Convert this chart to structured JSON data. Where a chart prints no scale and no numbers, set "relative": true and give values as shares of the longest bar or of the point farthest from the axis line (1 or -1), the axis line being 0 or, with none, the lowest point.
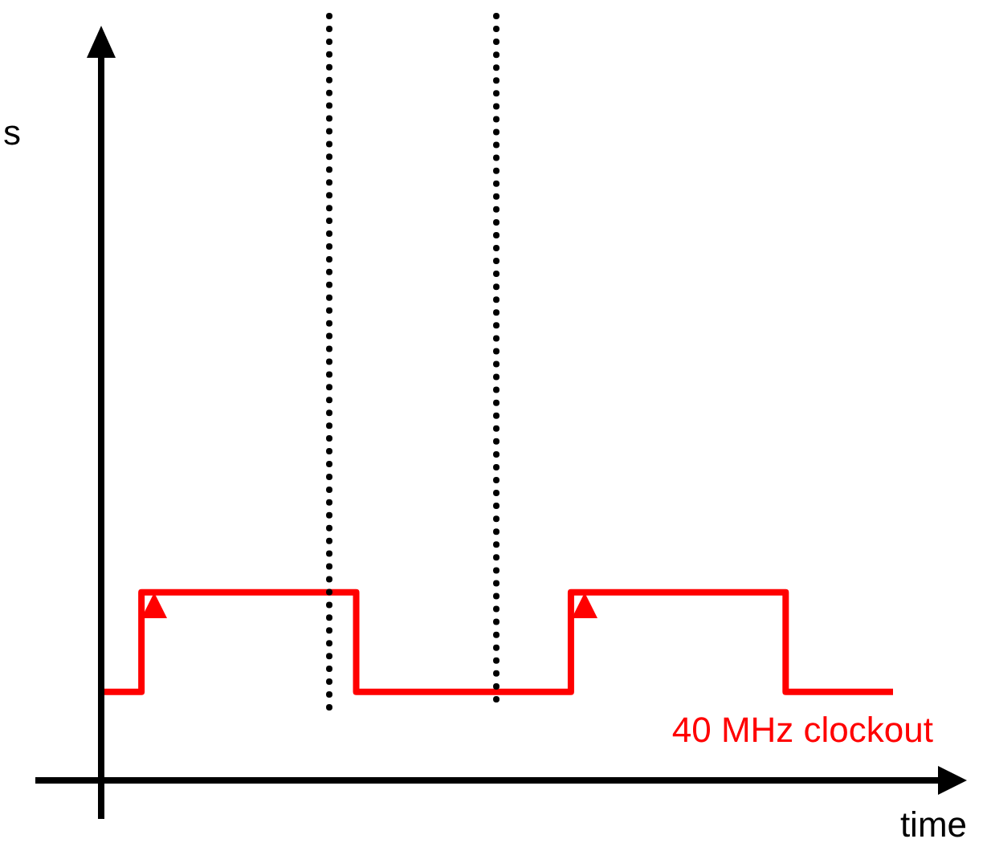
{
  "chart_data": {
    "type": "step",
    "relative": true,
    "xlabel": "time",
    "tick_labels": false,
    "marker": "none",
    "line_style": "solid",
    "categories": [
      null,
      null,
      null,
      null,
      null,
      null,
      null,
      null,
      null,
      null,
      null,
      null,
      null,
      null,
      null,
      null,
      null,
      null,
      null,
      null,
      null,
      null,
      null,
      null,
      null,
      null,
      null,
      null,
      null,
      null,
      null,
      null,
      null,
      null,
      null,
      null,
      null,
      null,
      null,
      null,
      null,
      null,
      null,
      null,
      null,
      null,
      null,
      null,
      null,
      null,
      null,
      null,
      null,
      null,
      null,
      null,
      null,
      null,
      null,
      null
    ],
    "series": [
      {
        "name": "40 MHz clockout",
        "color": "#ff0000",
        "values": [
          0.47,
          0.47,
          0.47,
          0.47,
          1,
          1,
          1,
          1,
          1,
          1,
          1,
          1,
          1,
          1,
          1,
          1,
          1,
          1,
          1,
          1,
          0.47,
          0.47,
          0.47,
          0.47,
          0.47,
          0.47,
          0.47,
          0.47,
          0.47,
          0.47,
          0.47,
          0.47,
          0.47,
          0.47,
          0.47,
          0.47,
          1,
          1,
          1,
          1,
          1,
          1,
          1,
          1,
          1,
          1,
          1,
          1,
          1,
          1,
          1,
          1,
          0.47,
          0.47,
          0.47,
          0.47,
          0.47,
          0.47,
          0.47,
          0.47
        ]
      }
    ],
    "annotations": [
      "s"
    ]
  }
}
